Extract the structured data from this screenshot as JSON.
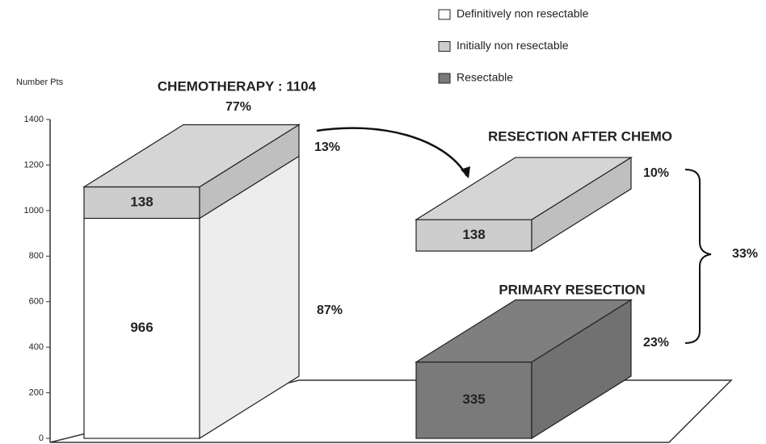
{
  "chart_data": {
    "type": "bar",
    "y_axis_label": "Number Pts",
    "ylim": [
      0,
      1400
    ],
    "yticks": [
      0,
      200,
      400,
      600,
      800,
      1000,
      1200,
      1400
    ],
    "legend": "top-right",
    "categories": [
      "CHEMOTHERAPY : 1104",
      "RESECTION AFTER CHEMO",
      "PRIMARY RESECTION"
    ],
    "series": [
      {
        "name": "Definitively non resectable",
        "color": "#ffffff",
        "values": [
          966,
          null,
          null
        ]
      },
      {
        "name": "Initially non resectable",
        "color": "#cdcdcd",
        "values": [
          138,
          138,
          null
        ]
      },
      {
        "name": "Resectable",
        "color": "#7a7a7a",
        "values": [
          null,
          null,
          335
        ]
      }
    ],
    "annotations": [
      "77%",
      "13%",
      "87%",
      "10%",
      "23%",
      "33%"
    ]
  }
}
